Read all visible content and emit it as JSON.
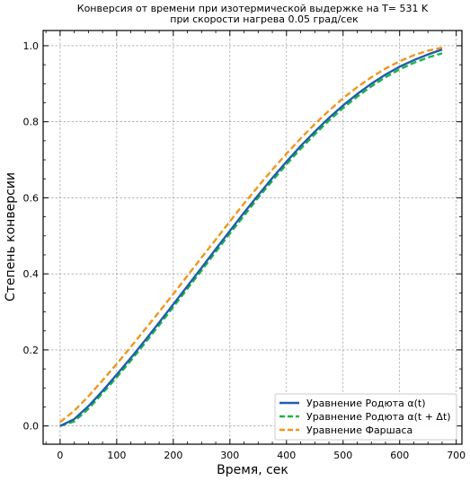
{
  "chart_data": {
    "type": "line",
    "title": "Конверсия от времени при изотермической выдержке на T= 531 K",
    "subtitle": "при скорости нагрева 0.05 град/сек",
    "xlabel": "Время, сек",
    "ylabel": "Степень конверсии",
    "xlim": [
      -30,
      710
    ],
    "ylim": [
      -0.048,
      1.04
    ],
    "xticks": [
      0,
      100,
      200,
      300,
      400,
      500,
      600,
      700
    ],
    "yticks": [
      0.0,
      0.2,
      0.4,
      0.6,
      0.8,
      1.0
    ],
    "xtick_labels": [
      "0",
      "100",
      "200",
      "300",
      "400",
      "500",
      "600",
      "700"
    ],
    "ytick_labels": [
      "0.0",
      "0.2",
      "0.4",
      "0.6",
      "0.8",
      "1.0"
    ],
    "grid": true,
    "legend_position": "bottom-right",
    "series": [
      {
        "name": "Уравнение Родюта α(t)",
        "color": "#1f5fa8",
        "style": "solid",
        "x": [
          0,
          25,
          50,
          75,
          100,
          125,
          150,
          175,
          200,
          225,
          250,
          275,
          300,
          325,
          350,
          375,
          400,
          425,
          450,
          475,
          500,
          525,
          550,
          575,
          600,
          625,
          650,
          675
        ],
        "y": [
          0.0,
          0.018,
          0.052,
          0.092,
          0.135,
          0.179,
          0.225,
          0.272,
          0.32,
          0.368,
          0.416,
          0.465,
          0.513,
          0.561,
          0.607,
          0.652,
          0.695,
          0.736,
          0.774,
          0.81,
          0.843,
          0.873,
          0.9,
          0.924,
          0.945,
          0.962,
          0.977,
          0.99
        ]
      },
      {
        "name": "Уравнение Родюта α(t + Δt)",
        "color": "#1db34a",
        "style": "dashed",
        "x": [
          0,
          25,
          50,
          75,
          100,
          125,
          150,
          175,
          200,
          225,
          250,
          275,
          300,
          325,
          350,
          375,
          400,
          425,
          450,
          475,
          500,
          525,
          550,
          575,
          600,
          625,
          650,
          675
        ],
        "y": [
          0.0,
          0.012,
          0.045,
          0.086,
          0.128,
          0.172,
          0.218,
          0.265,
          0.313,
          0.361,
          0.409,
          0.458,
          0.506,
          0.553,
          0.6,
          0.645,
          0.688,
          0.729,
          0.767,
          0.803,
          0.836,
          0.866,
          0.893,
          0.917,
          0.938,
          0.955,
          0.969,
          0.98
        ]
      },
      {
        "name": "Уравнение Фаршаса",
        "color": "#f0961e",
        "style": "dashed",
        "x": [
          0,
          25,
          50,
          75,
          100,
          125,
          150,
          175,
          200,
          225,
          250,
          275,
          300,
          325,
          350,
          375,
          400,
          425,
          450,
          475,
          500,
          525,
          550,
          575,
          600,
          625,
          650,
          675
        ],
        "y": [
          0.01,
          0.04,
          0.078,
          0.12,
          0.163,
          0.208,
          0.254,
          0.3,
          0.347,
          0.395,
          0.443,
          0.49,
          0.538,
          0.585,
          0.63,
          0.674,
          0.716,
          0.756,
          0.794,
          0.829,
          0.862,
          0.891,
          0.917,
          0.94,
          0.959,
          0.975,
          0.987,
          0.995
        ]
      }
    ]
  }
}
